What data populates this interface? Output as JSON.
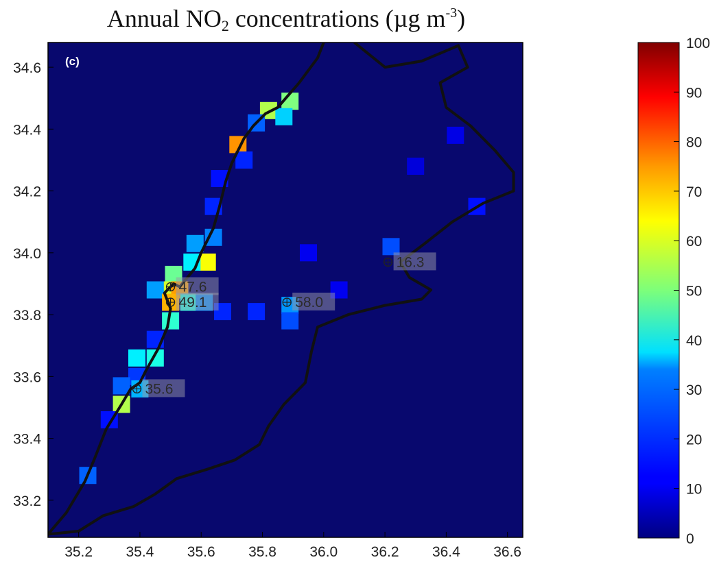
{
  "title": {
    "prefix": "Annual NO",
    "sub": "2",
    "middle": " concentrations (µg m",
    "sup": "-3",
    "suffix": ")"
  },
  "panel_label": "(c)",
  "colors": {
    "background": "#08086e",
    "border": "#111111"
  },
  "chart_data": {
    "type": "heatmap",
    "xlim": [
      35.1,
      36.65
    ],
    "ylim": [
      33.08,
      34.68
    ],
    "x_ticks": [
      "35.2",
      "35.4",
      "35.6",
      "35.8",
      "36.0",
      "36.2",
      "36.4",
      "36.6"
    ],
    "y_ticks": [
      "34.6",
      "34.4",
      "34.2",
      "34.0",
      "33.8",
      "33.6",
      "33.4",
      "33.2"
    ],
    "colorbar": {
      "min": 0,
      "max": 100,
      "ticks": [
        "100",
        "90",
        "80",
        "70",
        "60",
        "50",
        "40",
        "30",
        "20",
        "10",
        "0"
      ],
      "colormap": "jet"
    },
    "background_value": 3,
    "cells": [
      {
        "lon": 35.89,
        "lat": 34.49,
        "value": 50
      },
      {
        "lon": 35.82,
        "lat": 34.46,
        "value": 55
      },
      {
        "lon": 35.87,
        "lat": 34.44,
        "value": 33
      },
      {
        "lon": 35.78,
        "lat": 34.42,
        "value": 22
      },
      {
        "lon": 35.72,
        "lat": 34.35,
        "value": 73
      },
      {
        "lon": 35.74,
        "lat": 34.3,
        "value": 16
      },
      {
        "lon": 35.66,
        "lat": 34.24,
        "value": 14
      },
      {
        "lon": 35.64,
        "lat": 34.15,
        "value": 16
      },
      {
        "lon": 35.64,
        "lat": 34.05,
        "value": 25
      },
      {
        "lon": 35.58,
        "lat": 34.03,
        "value": 28
      },
      {
        "lon": 35.62,
        "lat": 33.97,
        "value": 62
      },
      {
        "lon": 35.57,
        "lat": 33.97,
        "value": 36
      },
      {
        "lon": 35.51,
        "lat": 33.93,
        "value": 48
      },
      {
        "lon": 35.48,
        "lat": 33.88,
        "value": 58
      },
      {
        "lon": 35.53,
        "lat": 33.88,
        "value": 72
      },
      {
        "lon": 35.45,
        "lat": 33.88,
        "value": 28
      },
      {
        "lon": 35.5,
        "lat": 33.84,
        "value": 70
      },
      {
        "lon": 35.56,
        "lat": 33.84,
        "value": 40
      },
      {
        "lon": 35.61,
        "lat": 33.84,
        "value": 26
      },
      {
        "lon": 35.5,
        "lat": 33.78,
        "value": 42
      },
      {
        "lon": 35.67,
        "lat": 33.81,
        "value": 16
      },
      {
        "lon": 35.78,
        "lat": 33.81,
        "value": 16
      },
      {
        "lon": 35.89,
        "lat": 33.83,
        "value": 27
      },
      {
        "lon": 35.89,
        "lat": 33.78,
        "value": 20
      },
      {
        "lon": 35.45,
        "lat": 33.72,
        "value": 16
      },
      {
        "lon": 35.39,
        "lat": 33.66,
        "value": 36
      },
      {
        "lon": 35.45,
        "lat": 33.66,
        "value": 40
      },
      {
        "lon": 35.39,
        "lat": 33.6,
        "value": 18
      },
      {
        "lon": 35.34,
        "lat": 33.57,
        "value": 22
      },
      {
        "lon": 35.4,
        "lat": 33.56,
        "value": 30
      },
      {
        "lon": 35.34,
        "lat": 33.51,
        "value": 55
      },
      {
        "lon": 35.3,
        "lat": 33.46,
        "value": 14
      },
      {
        "lon": 35.23,
        "lat": 33.28,
        "value": 22
      },
      {
        "lon": 36.22,
        "lat": 34.02,
        "value": 20
      },
      {
        "lon": 36.43,
        "lat": 34.38,
        "value": 10
      },
      {
        "lon": 36.5,
        "lat": 34.15,
        "value": 14
      },
      {
        "lon": 36.3,
        "lat": 34.28,
        "value": 9
      },
      {
        "lon": 35.95,
        "lat": 34.0,
        "value": 11
      },
      {
        "lon": 36.05,
        "lat": 33.88,
        "value": 11
      }
    ],
    "coast": [
      [
        35.1,
        33.09
      ],
      [
        35.16,
        33.16
      ],
      [
        35.22,
        33.26
      ],
      [
        35.25,
        33.33
      ],
      [
        35.29,
        33.43
      ],
      [
        35.34,
        33.51
      ],
      [
        35.37,
        33.56
      ],
      [
        35.4,
        33.58
      ],
      [
        35.42,
        33.62
      ],
      [
        35.46,
        33.69
      ],
      [
        35.49,
        33.76
      ],
      [
        35.5,
        33.82
      ],
      [
        35.48,
        33.87
      ],
      [
        35.51,
        33.9
      ],
      [
        35.53,
        33.89
      ],
      [
        35.58,
        33.95
      ],
      [
        35.6,
        34.0
      ],
      [
        35.64,
        34.08
      ],
      [
        35.66,
        34.15
      ],
      [
        35.68,
        34.23
      ],
      [
        35.7,
        34.29
      ],
      [
        35.72,
        34.33
      ],
      [
        35.74,
        34.37
      ],
      [
        35.77,
        34.41
      ],
      [
        35.81,
        34.45
      ],
      [
        35.85,
        34.47
      ],
      [
        35.92,
        34.55
      ],
      [
        35.98,
        34.63
      ],
      [
        36.0,
        34.68
      ]
    ],
    "border": [
      [
        36.1,
        34.68
      ],
      [
        36.2,
        34.6
      ],
      [
        36.32,
        34.62
      ],
      [
        36.44,
        34.67
      ],
      [
        36.47,
        34.6
      ],
      [
        36.38,
        34.55
      ],
      [
        36.4,
        34.47
      ],
      [
        36.48,
        34.41
      ],
      [
        36.56,
        34.33
      ],
      [
        36.62,
        34.26
      ],
      [
        36.62,
        34.2
      ],
      [
        36.52,
        34.16
      ],
      [
        36.42,
        34.1
      ],
      [
        36.33,
        34.03
      ],
      [
        36.25,
        33.97
      ],
      [
        36.28,
        33.92
      ],
      [
        36.35,
        33.88
      ],
      [
        36.32,
        33.85
      ],
      [
        36.2,
        33.83
      ],
      [
        36.08,
        33.8
      ],
      [
        35.98,
        33.76
      ],
      [
        35.96,
        33.68
      ],
      [
        35.94,
        33.58
      ],
      [
        35.87,
        33.51
      ],
      [
        35.82,
        33.44
      ],
      [
        35.79,
        33.38
      ],
      [
        35.71,
        33.33
      ],
      [
        35.62,
        33.3
      ],
      [
        35.52,
        33.27
      ],
      [
        35.45,
        33.22
      ],
      [
        35.38,
        33.18
      ],
      [
        35.28,
        33.15
      ],
      [
        35.2,
        33.1
      ],
      [
        35.1,
        33.09
      ]
    ],
    "stations": [
      {
        "lon": 35.5,
        "lat": 33.89,
        "label": "47.6"
      },
      {
        "lon": 35.5,
        "lat": 33.84,
        "label": "49.1"
      },
      {
        "lon": 35.88,
        "lat": 33.84,
        "label": "58.0"
      },
      {
        "lon": 35.39,
        "lat": 33.56,
        "label": "35.6"
      },
      {
        "lon": 36.21,
        "lat": 33.97,
        "label": "16.3"
      }
    ]
  }
}
